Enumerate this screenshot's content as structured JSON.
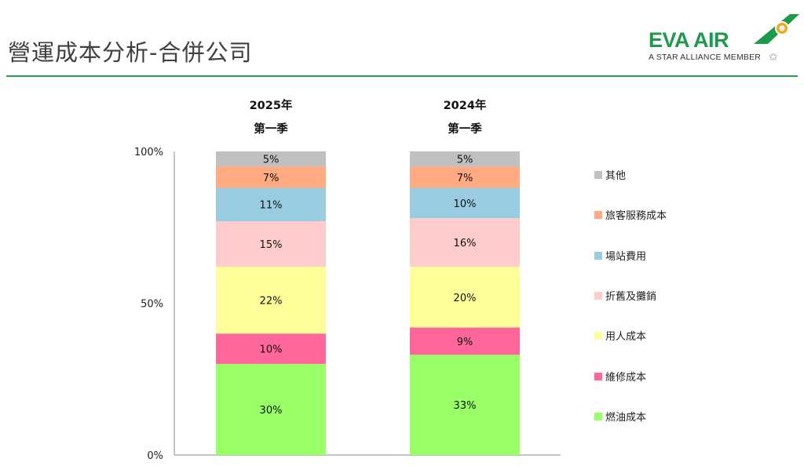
{
  "header": {
    "title": "營運成本分析-合併公司",
    "logo_text": "EVA AIR",
    "logo_sub": "A STAR ALLIANCE MEMBER"
  },
  "chart_data": {
    "type": "bar",
    "stacked": true,
    "percent": true,
    "categories": [
      {
        "year": "2025年",
        "quarter": "第一季"
      },
      {
        "year": "2024年",
        "quarter": "第一季"
      }
    ],
    "yticks": [
      "0%",
      "50%",
      "100%"
    ],
    "ylim": [
      0,
      100
    ],
    "legend_position": "right",
    "grid": false,
    "series": [
      {
        "name": "燃油成本",
        "color": "#99ff66",
        "values": [
          30,
          33
        ],
        "labels": [
          "30%",
          "33%"
        ]
      },
      {
        "name": "維修成本",
        "color": "#ff6699",
        "values": [
          10,
          9
        ],
        "labels": [
          "10%",
          "9%"
        ]
      },
      {
        "name": "用人成本",
        "color": "#ffff99",
        "values": [
          22,
          20
        ],
        "labels": [
          "22%",
          "20%"
        ]
      },
      {
        "name": "折舊及攤銷",
        "color": "#ffcccc",
        "values": [
          15,
          16
        ],
        "labels": [
          "15%",
          "16%"
        ]
      },
      {
        "name": "場站費用",
        "color": "#99cce0",
        "values": [
          11,
          10
        ],
        "labels": [
          "11%",
          "10%"
        ]
      },
      {
        "name": "旅客服務成本",
        "color": "#ffaa80",
        "values": [
          7,
          7
        ],
        "labels": [
          "7%",
          "7%"
        ]
      },
      {
        "name": "其他",
        "color": "#c0c0c0",
        "values": [
          5,
          5
        ],
        "labels": [
          "5%",
          "5%"
        ]
      }
    ]
  }
}
